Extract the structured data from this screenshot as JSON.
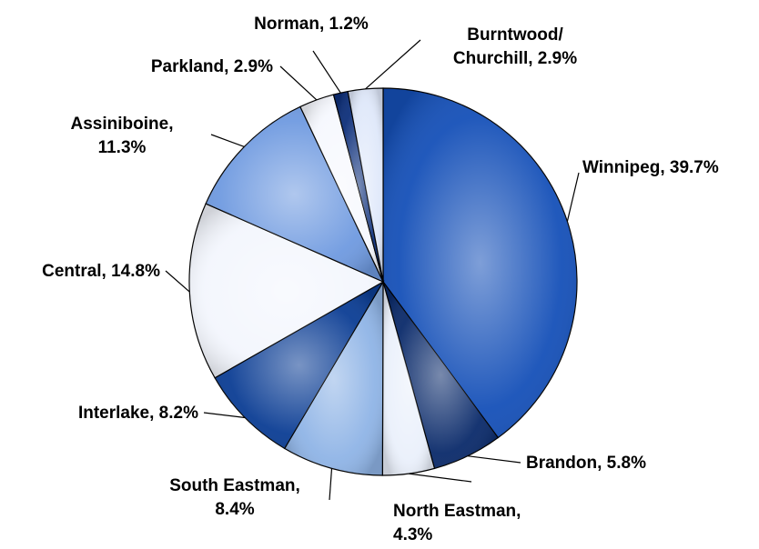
{
  "chart_data": {
    "type": "pie",
    "slices": [
      {
        "name": "Winnipeg",
        "label": [
          "Winnipeg, 39.7%"
        ],
        "value": 39.7,
        "color": "#1550b8"
      },
      {
        "name": "Brandon",
        "label": [
          "Brandon, 5.8%"
        ],
        "value": 5.8,
        "color": "#0a2a6a"
      },
      {
        "name": "North Eastman",
        "label": [
          "North Eastman,",
          "4.3%"
        ],
        "value": 4.3,
        "color": "#eaf0fb"
      },
      {
        "name": "South Eastman",
        "label": [
          "South Eastman,",
          "8.4%"
        ],
        "value": 8.4,
        "color": "#8fb4e6"
      },
      {
        "name": "Interlake",
        "label": [
          "Interlake, 8.2%"
        ],
        "value": 8.2,
        "color": "#0b3d94"
      },
      {
        "name": "Central",
        "label": [
          "Central, 14.8%"
        ],
        "value": 14.8,
        "color": "#f3f6fd"
      },
      {
        "name": "Assiniboine",
        "label": [
          "Assiniboine,",
          "11.3%"
        ],
        "value": 11.3,
        "color": "#6f9ae0"
      },
      {
        "name": "Parkland",
        "label": [
          "Parkland, 2.9%"
        ],
        "value": 2.9,
        "color": "#f6f8fe"
      },
      {
        "name": "Norman",
        "label": [
          "Norman, 1.2%"
        ],
        "value": 1.2,
        "color": "#0d2f7a"
      },
      {
        "name": "Burntwood/Churchill",
        "label": [
          "Burntwood/",
          "Churchill, 2.9%"
        ],
        "value": 2.9,
        "color": "#dfe8fa"
      }
    ]
  }
}
